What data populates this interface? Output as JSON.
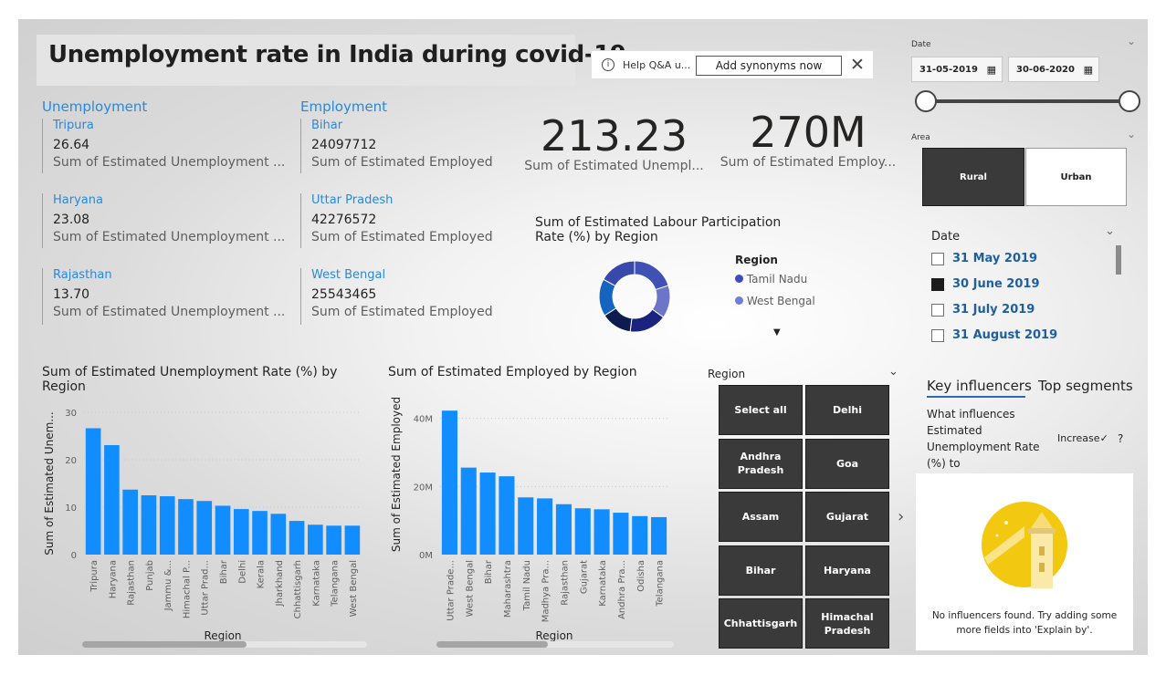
{
  "title": "Unemployment rate in India during covid-19",
  "qa": {
    "help_text": "Help Q&A u...",
    "button": "Add synonyms now",
    "info_icon": "info-icon",
    "close_icon": "close-icon"
  },
  "unemployment": {
    "heading": "Unemployment",
    "cards": [
      {
        "region": "Tripura",
        "value": "26.64",
        "label": "Sum of Estimated Unemployment ..."
      },
      {
        "region": "Haryana",
        "value": "23.08",
        "label": "Sum of Estimated Unemployment ..."
      },
      {
        "region": "Rajasthan",
        "value": "13.70",
        "label": "Sum of Estimated Unemployment ..."
      }
    ]
  },
  "employment": {
    "heading": "Employment",
    "cards": [
      {
        "region": "Bihar",
        "value": "24097712",
        "label": "Sum of Estimated Employed"
      },
      {
        "region": "Uttar Pradesh",
        "value": "42276572",
        "label": "Sum of Estimated Employed"
      },
      {
        "region": "West Bengal",
        "value": "25543465",
        "label": "Sum of Estimated Employed"
      }
    ]
  },
  "kpis": [
    {
      "value": "213.23",
      "label": "Sum of  Estimated Unempl..."
    },
    {
      "value": "270M",
      "label": "Sum of Estimated Employ..."
    }
  ],
  "donut": {
    "title_line1": "Sum of Estimated Labour Participation",
    "title_line2": "Rate (%) by Region",
    "legend_title": "Region",
    "legend": [
      {
        "name": "Tamil Nadu",
        "color": "#3b4cc0"
      },
      {
        "name": "West Bengal",
        "color": "#6f7dd4"
      }
    ],
    "slice_colors": [
      "#3f51b5",
      "#6b76c9",
      "#1a237e",
      "#0d1b4f",
      "#1565c0",
      "#3949ab"
    ]
  },
  "chart_data": [
    {
      "type": "bar",
      "title": "Sum of Estimated Unemployment Rate (%) by Region",
      "title_line1": "Sum of Estimated Unemployment Rate (%) by",
      "title_line2": "Region",
      "xlabel": "Region",
      "ylabel": "Sum of Estimated Unem...",
      "ylim": [
        0,
        30
      ],
      "yticks": [
        "0",
        "10",
        "20",
        "30"
      ],
      "ytick_values": [
        0,
        10,
        20,
        30
      ],
      "color": "#118dff",
      "categories": [
        "Tripura",
        "Haryana",
        "Rajasthan",
        "Punjab",
        "Jammu &...",
        "Himachal P...",
        "Uttar Prad...",
        "Bihar",
        "Delhi",
        "Kerala",
        "Jharkhand",
        "Chhattisgarh",
        "Karnataka",
        "Telangana",
        "West Bengal"
      ],
      "values": [
        26.64,
        23.08,
        13.7,
        12.5,
        12.3,
        11.7,
        11.3,
        10.3,
        9.6,
        9.2,
        8.6,
        7.1,
        6.3,
        6.1,
        6.1
      ]
    },
    {
      "type": "bar",
      "title": "Sum of Estimated Employed by Region",
      "xlabel": "Region",
      "ylabel": "Sum of Estimated Employed",
      "ylim": [
        0,
        45000000
      ],
      "yticks": [
        "0M",
        "20M",
        "40M"
      ],
      "ytick_values": [
        0,
        20000000,
        40000000
      ],
      "color": "#118dff",
      "categories": [
        "Uttar Prade...",
        "West Bengal",
        "Bihar",
        "Maharashtra",
        "Tamil Nadu",
        "Madhya Pra...",
        "Rajasthan",
        "Gujarat",
        "Karnataka",
        "Andhra Pra...",
        "Odisha",
        "Telangana"
      ],
      "values": [
        42276572,
        25543465,
        24097712,
        23000000,
        16800000,
        16500000,
        14800000,
        13600000,
        13300000,
        12300000,
        11300000,
        11000000
      ]
    }
  ],
  "region_slicer": {
    "title": "Region",
    "chevron_icon": "chevron-down-icon",
    "next_icon": "chevron-right-icon",
    "items": [
      "Select all",
      "Delhi",
      "Andhra Pradesh",
      "Goa",
      "Assam",
      "Gujarat",
      "Bihar",
      "Haryana",
      "Chhattisgarh",
      "Himachal Pradesh"
    ]
  },
  "date_range": {
    "title": "Date",
    "start": "31-05-2019",
    "end": "30-06-2020",
    "calendar_icon": "calendar-icon",
    "slider_position_start": 0,
    "slider_position_end": 1
  },
  "area": {
    "title": "Area",
    "options": [
      "Rural",
      "Urban"
    ],
    "selected": "Rural"
  },
  "date_list": {
    "title": "Date",
    "items": [
      {
        "label": "31 May 2019",
        "checked": false
      },
      {
        "label": "30 June 2019",
        "checked": true
      },
      {
        "label": "31 July 2019",
        "checked": false
      },
      {
        "label": "31 August 2019",
        "checked": false
      }
    ]
  },
  "key_influencers": {
    "tabs": [
      "Key influencers",
      "Top segments"
    ],
    "active_tab": "Key influencers",
    "question": "What influences Estimated Unemployment Rate (%) to",
    "q_line1": "What influences",
    "q_line2": "Estimated",
    "q_line3": "Unemployment Rate",
    "q_line4": "(%) to",
    "dropdown_value": "Increase",
    "help_icon": "?",
    "empty_line1": "No influencers found. Try adding some",
    "empty_line2": "more fields into 'Explain by'.",
    "illustration": "lighthouse-icon"
  }
}
